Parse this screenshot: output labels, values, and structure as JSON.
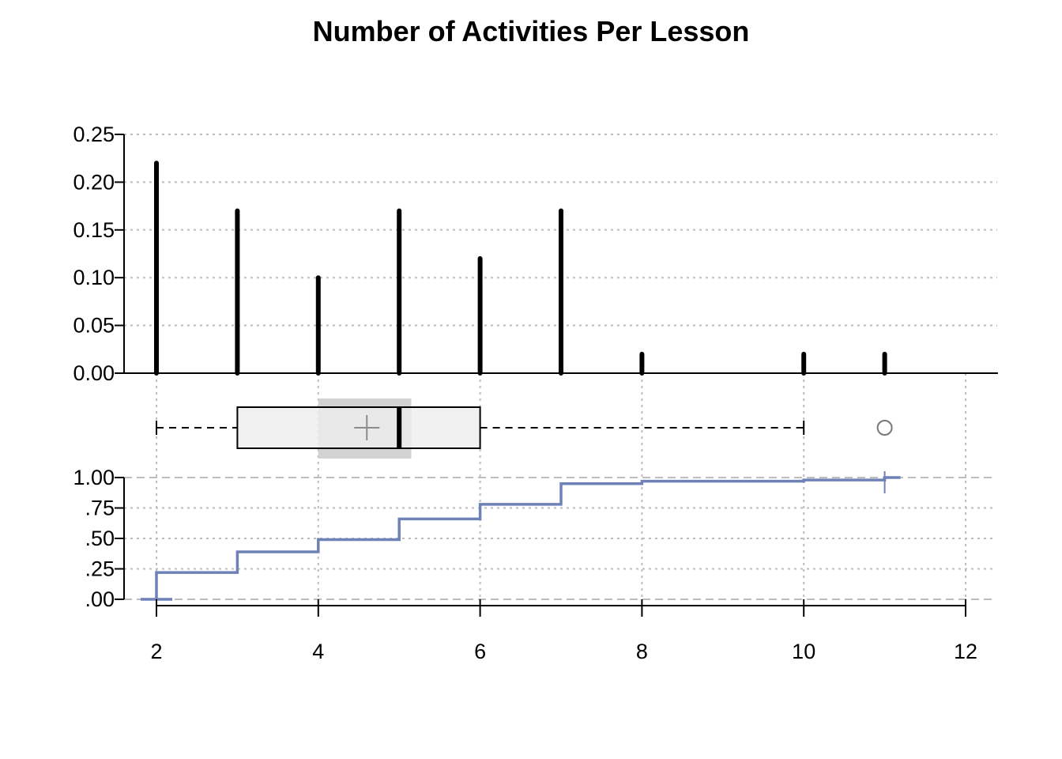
{
  "chart_data": {
    "title": "Number of Activities Per Lesson",
    "x_axis": {
      "range": [
        1.6,
        12.4
      ],
      "ticks": [
        2,
        4,
        6,
        8,
        10,
        12
      ],
      "tick_labels": [
        "2",
        "4",
        "6",
        "8",
        "10",
        "12"
      ],
      "grid": true
    },
    "panels": [
      {
        "type": "bar",
        "subtype": "relative-frequency spikes",
        "x": [
          2,
          3,
          4,
          5,
          6,
          7,
          8,
          10,
          11
        ],
        "values": [
          0.22,
          0.17,
          0.1,
          0.17,
          0.12,
          0.17,
          0.02,
          0.02,
          0.02
        ],
        "ylim": [
          0,
          0.25
        ],
        "y_ticks": [
          0,
          0.05,
          0.1,
          0.15,
          0.2,
          0.25
        ],
        "y_tick_labels": [
          "0.00",
          "0.05",
          "0.10",
          "0.15",
          "0.20",
          "0.25"
        ],
        "grid": true,
        "color": "#000000"
      },
      {
        "type": "boxplot",
        "whisker_low": 2,
        "q1": 3,
        "median": 5,
        "q3": 6,
        "whisker_high": 10,
        "mean": 4.6,
        "median_ci": [
          4.0,
          5.15
        ],
        "outliers": [
          11
        ],
        "box_color": "#eeeeee",
        "ci_color": "#d3d3d3"
      },
      {
        "type": "line",
        "subtype": "empirical cumulative distribution (step)",
        "x": [
          2,
          3,
          4,
          5,
          6,
          7,
          8,
          10,
          11
        ],
        "values": [
          0.22,
          0.39,
          0.49,
          0.66,
          0.78,
          0.95,
          0.97,
          0.98,
          1.0
        ],
        "ylim": [
          0,
          1
        ],
        "y_ticks": [
          0,
          0.25,
          0.5,
          0.75,
          1.0
        ],
        "y_tick_labels": [
          ".00",
          ".25",
          ".50",
          ".75",
          "1.00"
        ],
        "grid": true,
        "color": "#6f82b8"
      }
    ]
  }
}
